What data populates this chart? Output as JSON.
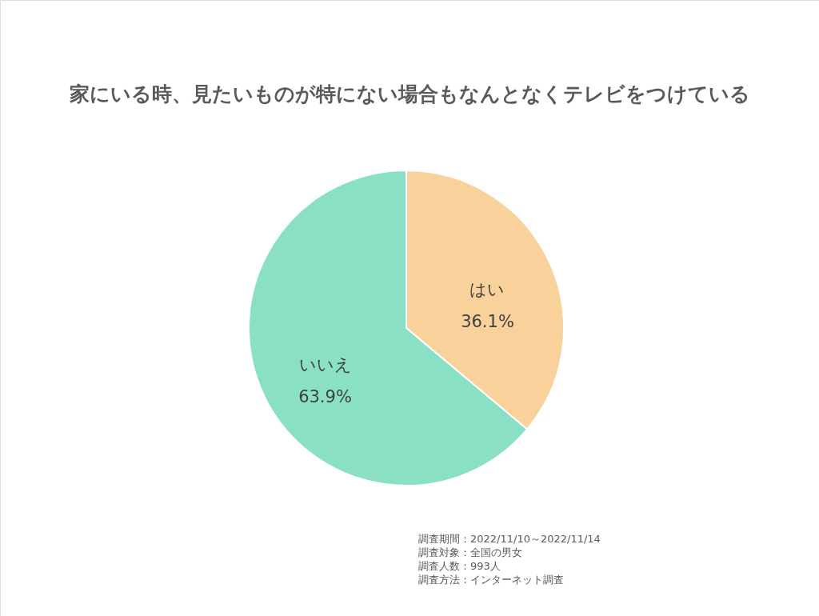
{
  "chart_data": {
    "type": "pie",
    "title": "家にいる時、見たいものが特にない場合もなんとなくテレビをつけている",
    "categories": [
      "はい",
      "いいえ"
    ],
    "values": [
      36.1,
      63.9
    ],
    "colors": [
      "#f8d19b",
      "#8ae0c4"
    ],
    "value_labels": [
      "36.1%",
      "63.9%"
    ],
    "annotations": [
      "調査期間：2022/11/10～2022/11/14",
      "調査対象：全国の男女",
      "調査人数：993人",
      "調査方法：インターネット調査"
    ]
  }
}
